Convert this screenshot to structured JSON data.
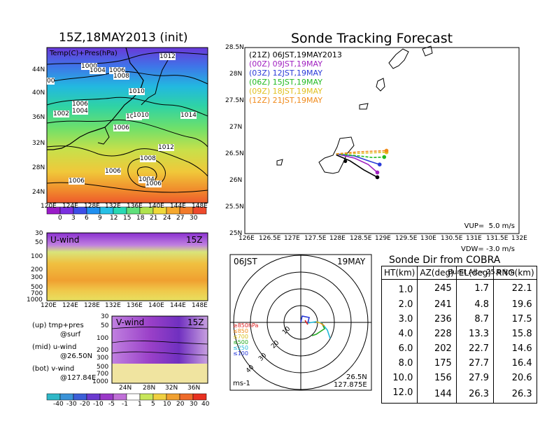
{
  "meteo": {
    "title": "15Z,18MAY2013 (init)",
    "map_label": "Temp(C)+Pres(hPa)",
    "lat_ticks": [
      "44N",
      "40N",
      "36N",
      "32N",
      "28N",
      "24N"
    ],
    "lon_ticks": [
      "120E",
      "124E",
      "128E",
      "132E",
      "136E",
      "140E",
      "144E",
      "148E"
    ],
    "isobar_labels": [
      "1012",
      "1000",
      "1004",
      "1006",
      "1008",
      "1010",
      "1002",
      "1006",
      "1004",
      "1008",
      "1006",
      "1010",
      "1014",
      "1012",
      "1008",
      "1006",
      "1004",
      "1006",
      "1006",
      "00"
    ],
    "temp_scale": [
      "0",
      "3",
      "6",
      "9",
      "12",
      "15",
      "18",
      "21",
      "24",
      "27",
      "30"
    ],
    "temp_colors": [
      "#9a1cc8",
      "#7b30e0",
      "#3d4ee8",
      "#1f8ff0",
      "#27c0e6",
      "#28d9b4",
      "#5fe07a",
      "#b0e34e",
      "#efd93a",
      "#f5a82e",
      "#f27a2a",
      "#ee4a2c"
    ],
    "uwind_label": "U-wind",
    "vwind_label": "V-wind",
    "time_tag": "15Z",
    "pres_ticks": [
      "30",
      "50",
      "100",
      "200",
      "300",
      "500",
      "700",
      "1000"
    ],
    "vwind_lat_ticks": [
      "24N",
      "28N",
      "32N",
      "36N"
    ],
    "legend_lines": [
      "(up) tmp+pres",
      "@surf",
      "(mid) u-wind",
      "@26.50N",
      "(bot) v-wind",
      "@127.84E"
    ],
    "wind_scale": [
      "-40",
      "-30",
      "-20",
      "-10",
      "-5",
      "-1",
      "1",
      "5",
      "10",
      "20",
      "30",
      "40"
    ],
    "wind_colors": [
      "#2fb8c8",
      "#3a93d8",
      "#3c5fd8",
      "#6b3ad0",
      "#9a38c8",
      "#c070d8",
      "#ffffff",
      "#c8e65a",
      "#f0d040",
      "#f0a030",
      "#ee6a2a",
      "#e83020"
    ]
  },
  "chart_data": [
    {
      "type": "line",
      "title": "Sonde Tracking Forecast",
      "xlabel": "",
      "ylabel": "",
      "xlim": [
        126,
        132
      ],
      "ylim": [
        25,
        28.5
      ],
      "x_ticks": [
        "126E",
        "126.5E",
        "127E",
        "127.5E",
        "128E",
        "128.5E",
        "129E",
        "129.5E",
        "130E",
        "130.5E",
        "131E",
        "131.5E",
        "132E"
      ],
      "y_ticks": [
        "28.5N",
        "28N",
        "27.5N",
        "27N",
        "26.5N",
        "26N",
        "25.5N",
        "25N"
      ],
      "legend": [
        {
          "label": "(21Z) 06JST,19MAY2013",
          "color": "#000000"
        },
        {
          "label": "(00Z) 09JST,19MAY",
          "color": "#a020c0"
        },
        {
          "label": "(03Z) 12JST,19MAY",
          "color": "#2a3bd8"
        },
        {
          "label": "(06Z) 15JST,19MAY",
          "color": "#22bb22"
        },
        {
          "label": "(09Z) 18JST,19MAY",
          "color": "#e0c020"
        },
        {
          "label": "(12Z) 21JST,19MAY",
          "color": "#f08a1a"
        }
      ],
      "series": [
        {
          "name": "(21Z) 06JST,19MAY2013",
          "color": "#000000",
          "x": [
            128.0,
            128.3,
            128.6,
            128.9
          ],
          "y": [
            26.48,
            26.37,
            26.2,
            26.06
          ]
        },
        {
          "name": "(00Z) 09JST,19MAY",
          "color": "#a020c0",
          "x": [
            128.0,
            128.4,
            128.7,
            128.9
          ],
          "y": [
            26.5,
            26.42,
            26.3,
            26.15
          ]
        },
        {
          "name": "(03Z) 12JST,19MAY",
          "color": "#2a3bd8",
          "x": [
            128.0,
            128.4,
            128.7,
            128.95
          ],
          "y": [
            26.5,
            26.46,
            26.37,
            26.3
          ]
        },
        {
          "name": "(06Z) 15JST,19MAY",
          "color": "#22bb22",
          "x": [
            128.0,
            128.5,
            128.8,
            129.05
          ],
          "y": [
            26.5,
            26.46,
            26.43,
            26.44
          ]
        },
        {
          "name": "(09Z) 18JST,19MAY",
          "color": "#e0c020",
          "x": [
            128.0,
            128.5,
            128.8,
            129.1
          ],
          "y": [
            26.5,
            26.51,
            26.52,
            26.53
          ]
        },
        {
          "name": "(12Z) 21JST,19MAY",
          "color": "#f08a1a",
          "x": [
            128.0,
            128.5,
            128.8,
            129.1
          ],
          "y": [
            26.5,
            26.54,
            26.55,
            26.56
          ]
        }
      ],
      "launch_point": {
        "x": 128.2,
        "y": 26.36
      },
      "info": [
        "VUP=  5.0 m/s",
        "VDW= -3.0 m/s",
        "Burst Alt= 25.0 km"
      ]
    },
    {
      "type": "scatter",
      "label_left": "06JST",
      "label_right": "19MAY",
      "location": [
        "26.5N",
        "127.875E"
      ],
      "unit": "ms-1",
      "ring_labels": [
        "10",
        "20",
        "30",
        "40"
      ],
      "level_labels": [
        {
          "text": "≥850hPa",
          "color": "#e02020"
        },
        {
          "text": "≤850",
          "color": "#f08a1a"
        },
        {
          "text": "≤700",
          "color": "#d8c020"
        },
        {
          "text": "≤500",
          "color": "#22aa22"
        },
        {
          "text": "≤250",
          "color": "#22b8d8"
        },
        {
          "text": "≤100",
          "color": "#2a3bd8"
        }
      ],
      "hodograph": [
        {
          "color": "#2a3bd8",
          "x": [
            0,
            0.3,
            -0.2,
            1.0
          ]
        },
        {
          "color": "#2a3bd8",
          "x": [
            0,
            0,
            0,
            0
          ]
        }
      ]
    }
  ],
  "sonde_table": {
    "title": "Sonde Dir from COBRA",
    "headers": [
      "HT(km)",
      "AZ(deg)",
      "EL(deg)",
      "RNG(km)"
    ],
    "rows": [
      [
        "1.0",
        "245",
        "1.7",
        "22.1"
      ],
      [
        "2.0",
        "241",
        "4.8",
        "19.6"
      ],
      [
        "3.0",
        "236",
        "8.7",
        "17.5"
      ],
      [
        "4.0",
        "228",
        "13.3",
        "15.8"
      ],
      [
        "6.0",
        "202",
        "22.7",
        "14.6"
      ],
      [
        "8.0",
        "175",
        "27.7",
        "16.4"
      ],
      [
        "10.0",
        "156",
        "27.9",
        "20.6"
      ],
      [
        "12.0",
        "144",
        "26.3",
        "26.3"
      ]
    ]
  }
}
